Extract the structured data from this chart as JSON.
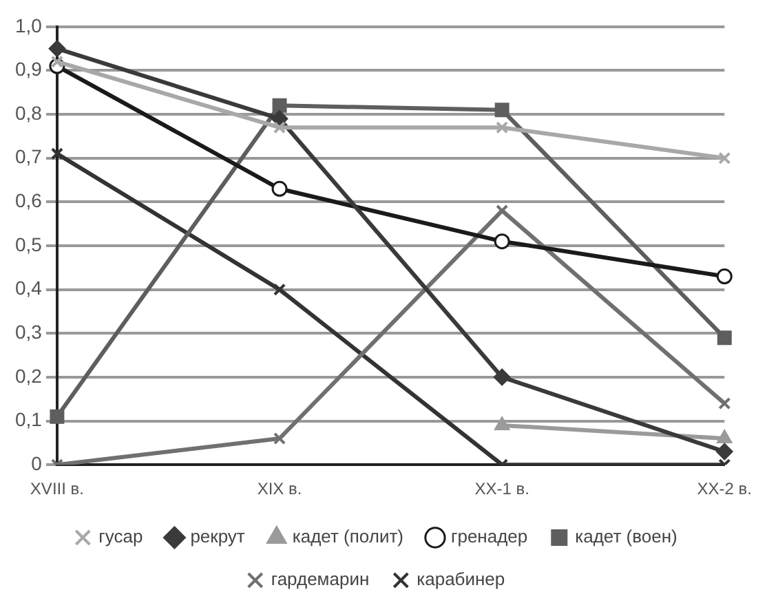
{
  "chart_data": {
    "type": "line",
    "categories": [
      "XVIII в.",
      "XIX в.",
      "XX-1 в.",
      "XX-2 в."
    ],
    "ylim": [
      0,
      1
    ],
    "yticks": [
      0,
      {
        "value": 0.1,
        "label": "0,1"
      },
      {
        "value": 0.2,
        "label": "0,2"
      },
      {
        "value": 0.3,
        "label": "0,3"
      },
      {
        "value": 0.4,
        "label": "0,4"
      },
      {
        "value": 0.5,
        "label": "0,5"
      },
      {
        "value": 0.6,
        "label": "0,6"
      },
      {
        "value": 0.7,
        "label": "0,7"
      },
      {
        "value": 0.8,
        "label": "0,8"
      },
      {
        "value": 0.9,
        "label": "0,9"
      },
      {
        "value": 1,
        "label": "1,0"
      }
    ],
    "grid": "y",
    "legend": "bottom",
    "line_style": "solid",
    "series": [
      {
        "name": "гусар",
        "color": "#a8a8a8",
        "marker": "cross",
        "values": [
          0.92,
          0.77,
          0.77,
          0.7
        ]
      },
      {
        "name": "рекрут",
        "color": "#3a3a3a",
        "marker": "diamond",
        "values": [
          0.95,
          0.79,
          0.2,
          0.03
        ]
      },
      {
        "name": "кадет (полит)",
        "color": "#9a9a9a",
        "marker": "triangle",
        "values": [
          null,
          null,
          0.09,
          0.06
        ]
      },
      {
        "name": "гренадер",
        "color": "#1a1a1a",
        "marker": "circle",
        "values": [
          0.91,
          0.63,
          0.51,
          0.43
        ]
      },
      {
        "name": "кадет (воен)",
        "color": "#5e5e5e",
        "marker": "square",
        "values": [
          0.11,
          0.82,
          0.81,
          0.29
        ]
      },
      {
        "name": "гардемарин",
        "color": "#707070",
        "marker": "cross",
        "values": [
          0,
          0.06,
          0.58,
          0.14
        ]
      },
      {
        "name": "карабинер",
        "color": "#333333",
        "marker": "cross",
        "values": [
          0.71,
          0.4,
          0,
          0
        ]
      }
    ]
  }
}
